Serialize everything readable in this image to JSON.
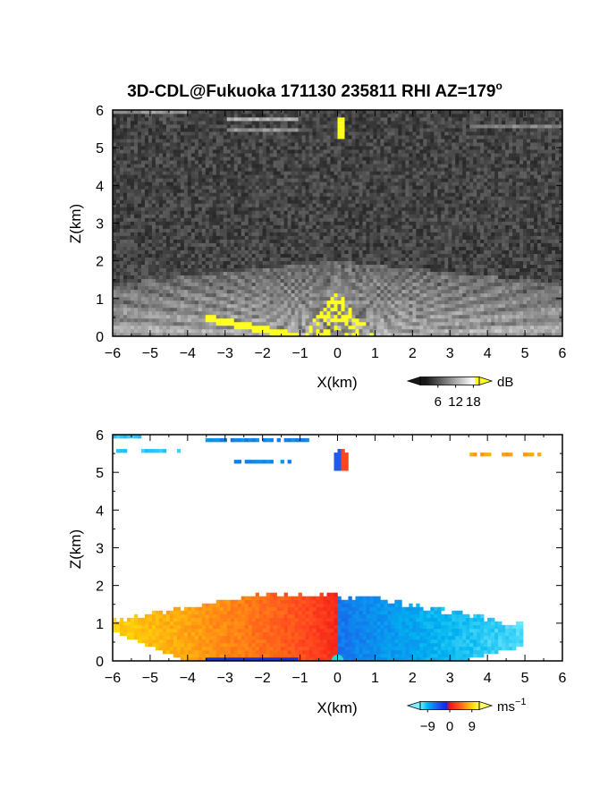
{
  "title": "3D-CDL@Fukuoka 171130 235811 RHI AZ=179",
  "title_degree": "o",
  "chart_data": [
    {
      "type": "heatmap",
      "panel": "top",
      "quantity": "reflectivity / SNR",
      "xlabel": "X(km)",
      "ylabel": "Z(km)",
      "xlim": [
        -6,
        6
      ],
      "ylim": [
        0,
        6
      ],
      "x_ticks": [
        "-6",
        "-5",
        "-4",
        "-3",
        "-2",
        "-1",
        "0",
        "1",
        "2",
        "3",
        "4",
        "5",
        "6"
      ],
      "y_ticks": [
        "0",
        "1",
        "2",
        "3",
        "4",
        "5",
        "6"
      ],
      "colormap": "grayscale to white, yellow at top",
      "colorbar": {
        "unit": "dB",
        "ticks": [
          "6",
          "12",
          "18"
        ],
        "range": [
          0,
          20
        ]
      },
      "features": [
        {
          "what": "boundary-layer echo fan",
          "x_range": [
            -6,
            6
          ],
          "z_top": 2.0,
          "value": 12
        },
        {
          "what": "strong near-radar echo",
          "x_range": [
            -1,
            1
          ],
          "z_range": [
            0,
            1.2
          ],
          "value": 19
        },
        {
          "what": "low-angle strong echo",
          "x_range": [
            -3.5,
            -1.0
          ],
          "z_range": [
            0,
            0.5
          ],
          "value": 19
        },
        {
          "what": "compact strong target",
          "x": 0.1,
          "z": 5.5,
          "value": 20
        },
        {
          "what": "thin layer",
          "x_range": [
            -3,
            -1.0
          ],
          "z": 5.75,
          "value": 11
        },
        {
          "what": "thin layer",
          "x_range": [
            -3,
            -1.0
          ],
          "z": 5.5,
          "value": 9
        },
        {
          "what": "thin layer",
          "x_range": [
            -6,
            -4
          ],
          "z": 5.95,
          "value": 9
        },
        {
          "what": "thin layer",
          "x_range": [
            3.5,
            6
          ],
          "z": 5.55,
          "value": 8
        }
      ]
    },
    {
      "type": "heatmap",
      "panel": "bottom",
      "quantity": "Doppler velocity",
      "xlabel": "X(km)",
      "ylabel": "Z(km)",
      "xlim": [
        -6,
        6
      ],
      "ylim": [
        0,
        6
      ],
      "x_ticks": [
        "-6",
        "-5",
        "-4",
        "-3",
        "-2",
        "-1",
        "0",
        "1",
        "2",
        "3",
        "4",
        "5",
        "6"
      ],
      "y_ticks": [
        "0",
        "1",
        "2",
        "3",
        "4",
        "5",
        "6"
      ],
      "colormap": "cyan-blue-red-yellow diverging",
      "colorbar": {
        "unit": "ms",
        "unit_exponent": "−1",
        "ticks": [
          "−9",
          "0",
          "9"
        ],
        "range": [
          -12,
          12
        ]
      },
      "features": [
        {
          "what": "boundary-layer flow, left side",
          "x_range": [
            -6,
            0
          ],
          "z_top": 1.8,
          "value_far": 9,
          "value_near": 1
        },
        {
          "what": "boundary-layer flow, right side",
          "x_range": [
            0,
            5
          ],
          "z_top": 1.7,
          "value_near": -6,
          "value_far": -11
        },
        {
          "what": "target at 5.3 km",
          "x": 0.1,
          "z": 5.3,
          "value_left": -5,
          "value_right": 3
        },
        {
          "what": "layer",
          "x_range": [
            -3.5,
            -0.8
          ],
          "z": 5.85,
          "value": -7
        },
        {
          "what": "layer",
          "x_range": [
            -3,
            -1.2
          ],
          "z": 5.3,
          "value": -7
        },
        {
          "what": "layer",
          "x_range": [
            -6,
            -4.2
          ],
          "z": 5.55,
          "value": -10
        },
        {
          "what": "layer",
          "x_range": [
            -6,
            -5.2
          ],
          "z": 5.95,
          "value": -10
        },
        {
          "what": "layer",
          "x_range": [
            3.5,
            5.4
          ],
          "z": 5.5,
          "value": 7
        }
      ]
    }
  ]
}
